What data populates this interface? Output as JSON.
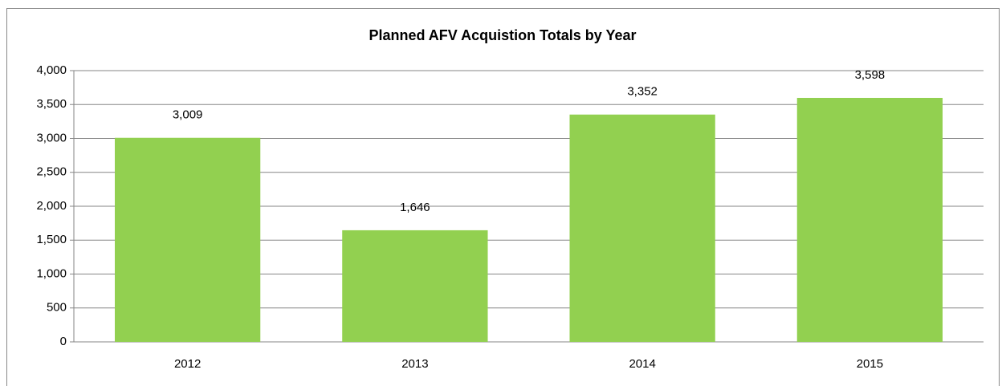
{
  "chart_data": {
    "type": "bar",
    "title": "Planned AFV Acquistion Totals by Year",
    "categories": [
      "2012",
      "2013",
      "2014",
      "2015"
    ],
    "values": [
      3009,
      1646,
      3352,
      3598
    ],
    "value_labels": [
      "3,009",
      "1,646",
      "3,352",
      "3,598"
    ],
    "color": "#92d050",
    "ylim": [
      0,
      4000
    ],
    "yticks": [
      0,
      {
        "value": 500,
        "label": "500"
      },
      {
        "value": 1000,
        "label": "1,000"
      },
      {
        "value": 1500,
        "label": "1,500"
      },
      {
        "value": 2000,
        "label": "2,000"
      },
      {
        "value": 2500,
        "label": "2,500"
      },
      {
        "value": 3000,
        "label": "3,000"
      },
      {
        "value": 3500,
        "label": "3,500"
      },
      {
        "value": 4000,
        "label": "4,000"
      }
    ],
    "grid": true
  }
}
